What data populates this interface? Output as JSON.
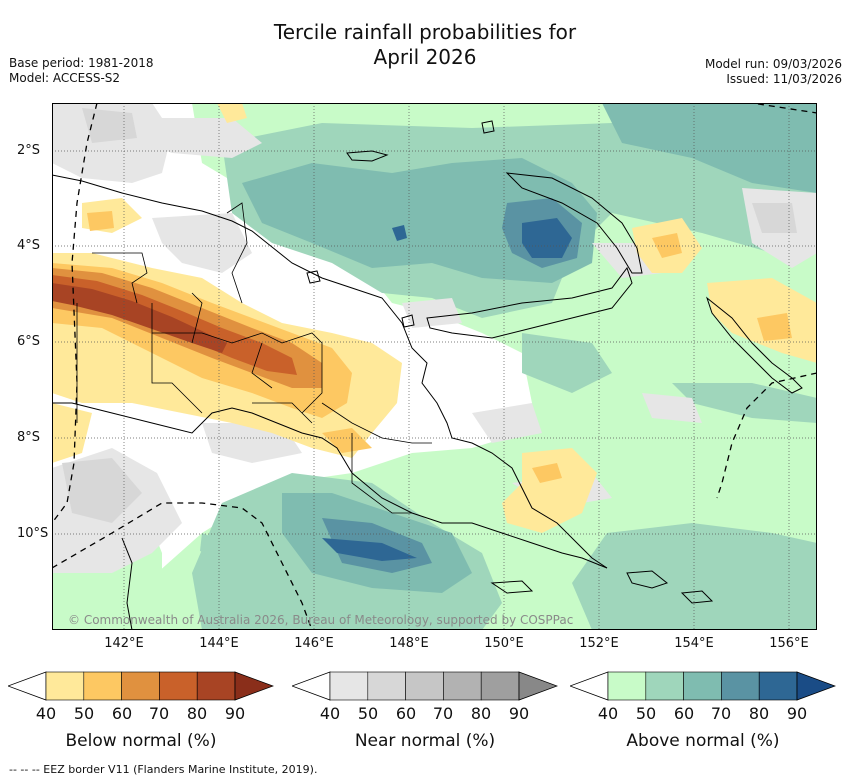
{
  "title": {
    "line1": "Tercile rainfall probabilities for",
    "line2": "April 2026"
  },
  "meta_left": {
    "base_period": "Base period: 1981-2018",
    "model": "Model: ACCESS-S2"
  },
  "meta_right": {
    "model_run": "Model run: 09/03/2026",
    "issued": "Issued: 11/03/2026"
  },
  "map": {
    "longitude_labels": [
      "142°E",
      "144°E",
      "146°E",
      "148°E",
      "150°E",
      "152°E",
      "154°E",
      "156°E"
    ],
    "latitude_labels": [
      "2°S",
      "4°S",
      "6°S",
      "8°S",
      "10°S"
    ],
    "lon_range": [
      140.5,
      156.6
    ],
    "lat_range": [
      -12.0,
      -1.0
    ],
    "copyright": "© Commonwealth of Australia 2026, Bureau of Meteorology, supported by COSPPac"
  },
  "colorbars": [
    {
      "label": "Below normal (%)",
      "ticks": [
        "40",
        "50",
        "60",
        "70",
        "80",
        "90"
      ],
      "colors": [
        "#ffffff",
        "#ffe99a",
        "#fdc862",
        "#e0913f",
        "#c9612a",
        "#a84424",
        "#8a2e1a"
      ]
    },
    {
      "label": "Near normal (%)",
      "ticks": [
        "40",
        "50",
        "60",
        "70",
        "80",
        "90"
      ],
      "colors": [
        "#ffffff",
        "#e6e6e6",
        "#d7d7d7",
        "#c6c6c6",
        "#b2b2b2",
        "#9f9f9f",
        "#888888"
      ]
    },
    {
      "label": "Above normal (%)",
      "ticks": [
        "40",
        "50",
        "60",
        "70",
        "80",
        "90"
      ],
      "colors": [
        "#ffffff",
        "#c8fbc8",
        "#9fd6bb",
        "#7fbcb0",
        "#5a93a3",
        "#2e6794",
        "#1a4c86"
      ]
    }
  ],
  "footnote": "-- -- -- EEZ border V11 (Flanders Marine Institute, 2019)."
}
